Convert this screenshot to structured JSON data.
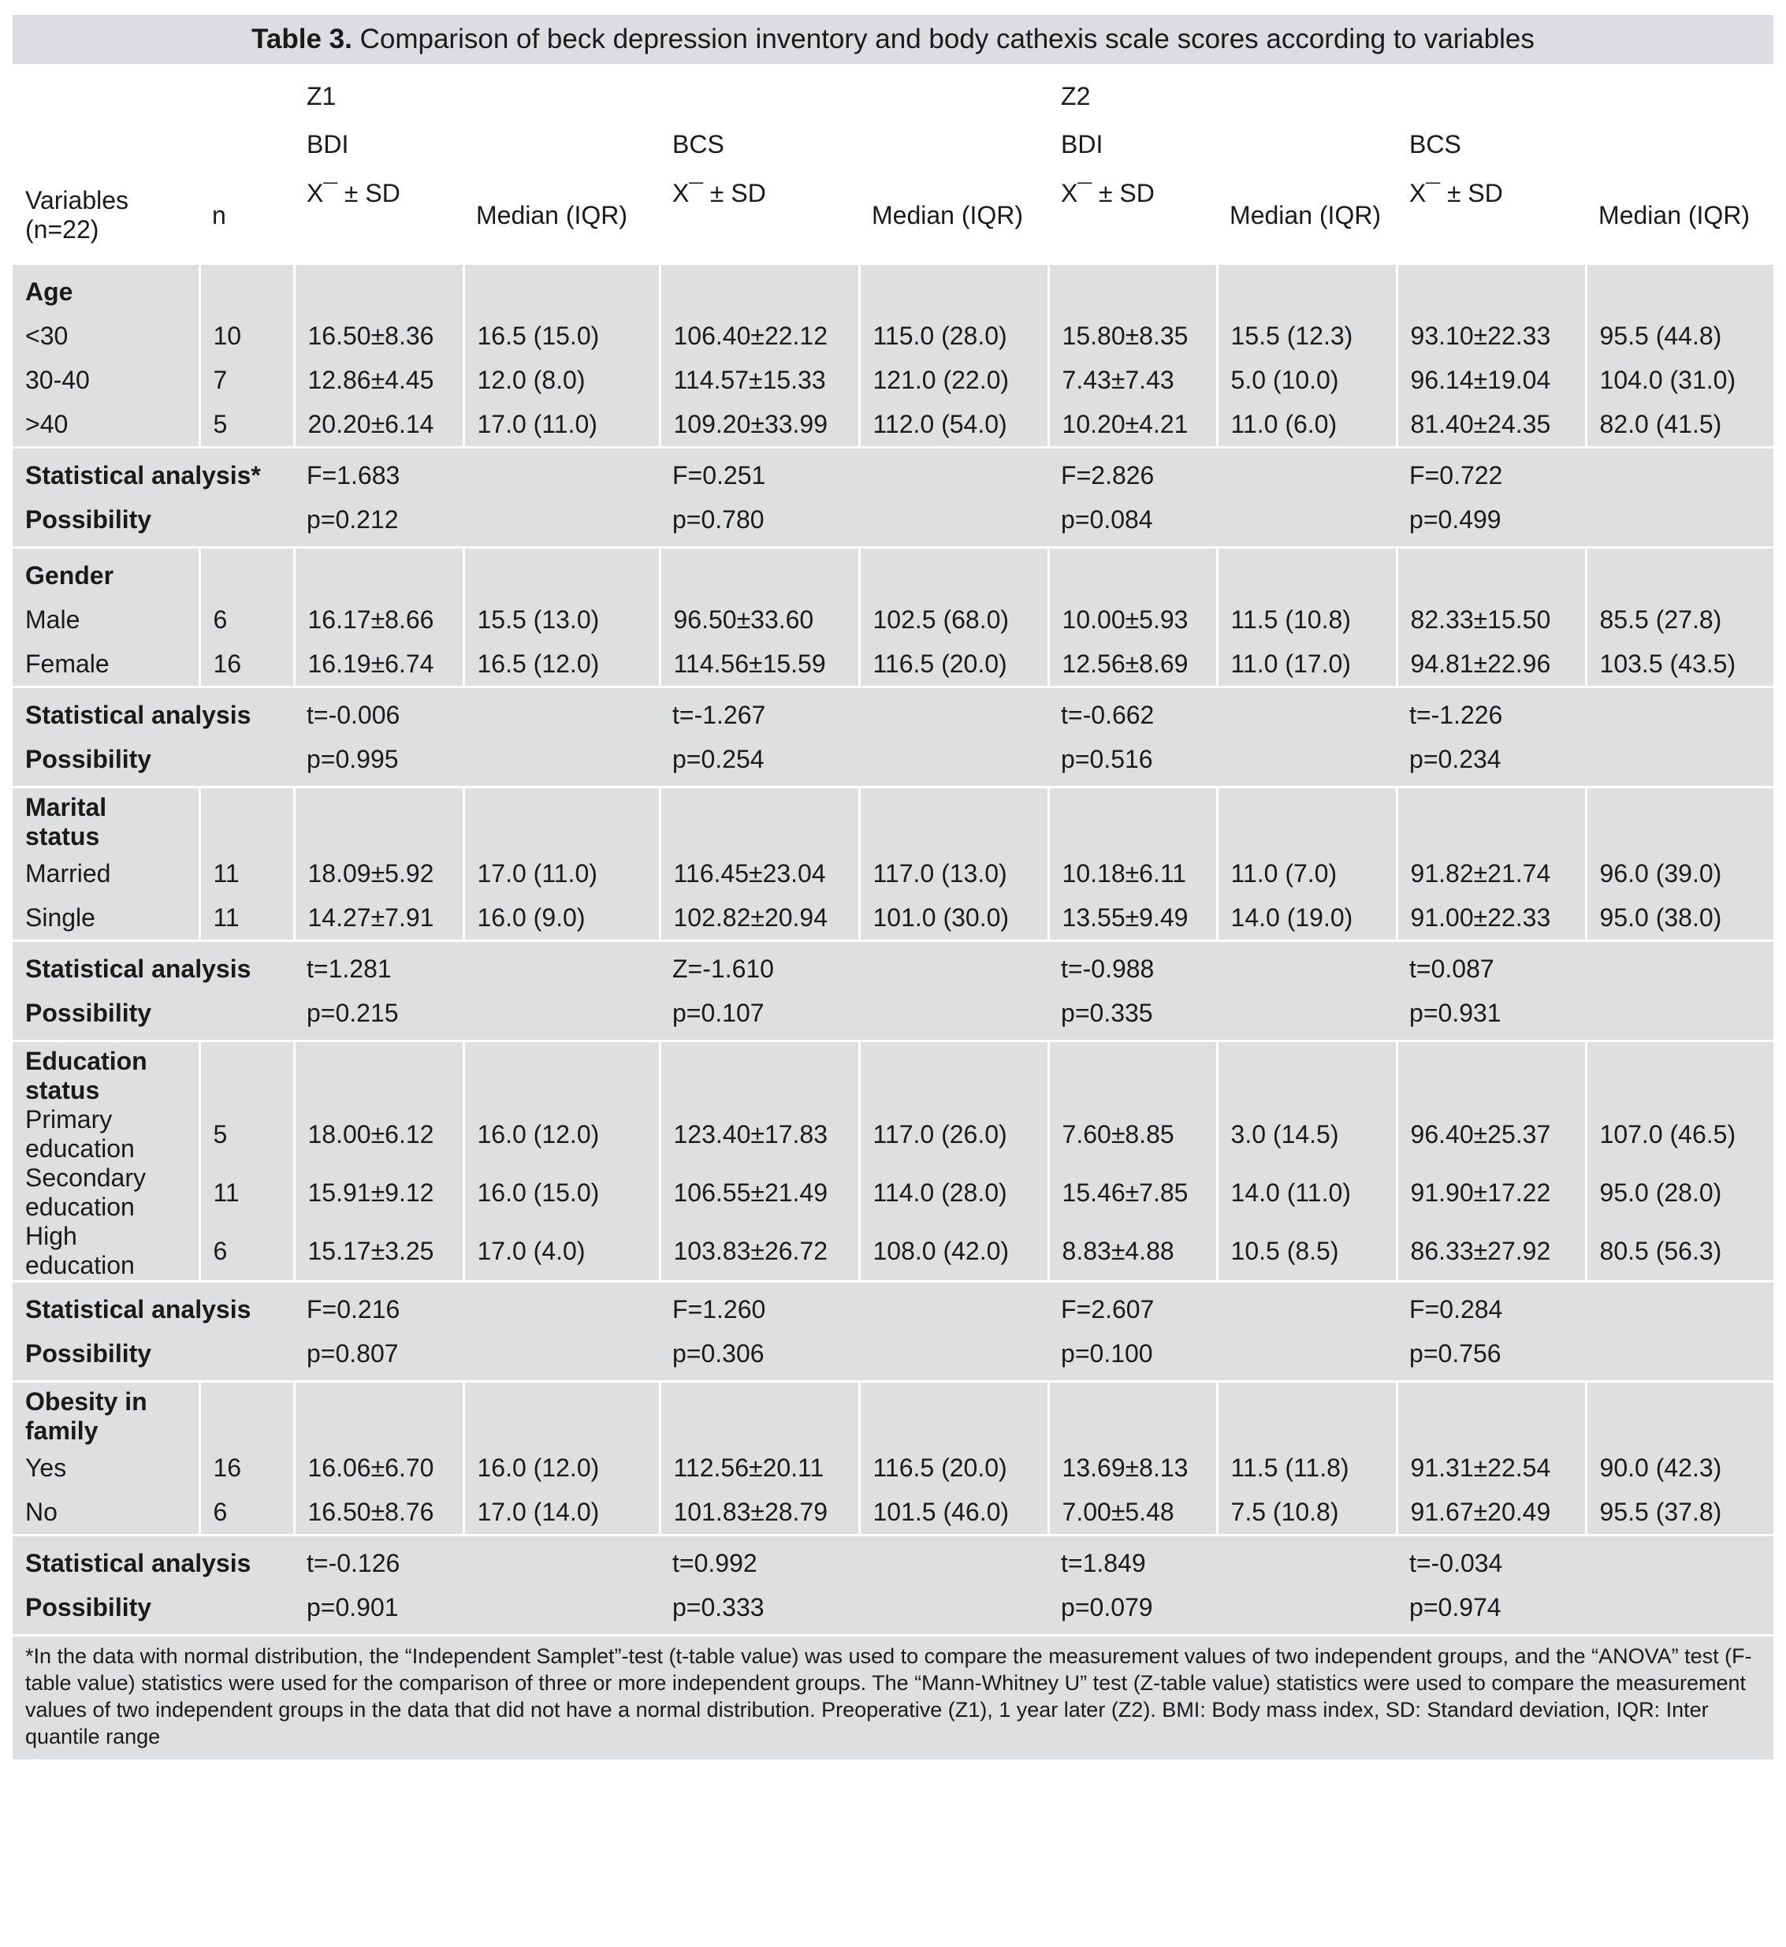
{
  "title_label": "Table 3.",
  "title": "Comparison of beck depression inventory and body cathexis scale scores according to variables",
  "header": {
    "time": [
      "Z1",
      "Z2"
    ],
    "scales": [
      "BDI",
      "BCS",
      "BDI",
      "BCS"
    ],
    "variables": "Variables (n=22)",
    "n": "n",
    "columns": [
      "X¯ ± SD",
      "Median (IQR)",
      "X¯ ± SD",
      "Median (IQR)",
      "X¯ ± SD",
      "Median (IQR)",
      "X¯ ± SD",
      "Median (IQR)"
    ]
  },
  "groups": [
    {
      "label": "Age",
      "rows": [
        {
          "label": "<30",
          "n": "10",
          "cells": [
            "16.50±8.36",
            "16.5 (15.0)",
            "106.40±22.12",
            "115.0 (28.0)",
            "15.80±8.35",
            "15.5 (12.3)",
            "93.10±22.33",
            "95.5 (44.8)"
          ]
        },
        {
          "label": "30-40",
          "n": "7",
          "cells": [
            "12.86±4.45",
            "12.0 (8.0)",
            "114.57±15.33",
            "121.0 (22.0)",
            "7.43±7.43",
            "5.0 (10.0)",
            "96.14±19.04",
            "104.0 (31.0)"
          ]
        },
        {
          "label": ">40",
          "n": "5",
          "cells": [
            "20.20±6.14",
            "17.0 (11.0)",
            "109.20±33.99",
            "112.0 (54.0)",
            "10.20±4.21",
            "11.0 (6.0)",
            "81.40±24.35",
            "82.0 (41.5)"
          ]
        }
      ],
      "stats": {
        "label": "Statistical analysis*",
        "values": [
          "F=1.683",
          "F=0.251",
          "F=2.826",
          "F=0.722"
        ]
      },
      "possibility": {
        "label": "Possibility",
        "values": [
          "p=0.212",
          "p=0.780",
          "p=0.084",
          "p=0.499"
        ]
      }
    },
    {
      "label": "Gender",
      "rows": [
        {
          "label": "Male",
          "n": "6",
          "cells": [
            "16.17±8.66",
            "15.5 (13.0)",
            "96.50±33.60",
            "102.5 (68.0)",
            "10.00±5.93",
            "11.5 (10.8)",
            "82.33±15.50",
            "85.5 (27.8)"
          ]
        },
        {
          "label": "Female",
          "n": "16",
          "cells": [
            "16.19±6.74",
            "16.5 (12.0)",
            "114.56±15.59",
            "116.5 (20.0)",
            "12.56±8.69",
            "11.0 (17.0)",
            "94.81±22.96",
            "103.5 (43.5)"
          ]
        }
      ],
      "stats": {
        "label": "Statistical analysis",
        "values": [
          "t=-0.006",
          "t=-1.267",
          "t=-0.662",
          "t=-1.226"
        ]
      },
      "possibility": {
        "label": "Possibility",
        "values": [
          "p=0.995",
          "p=0.254",
          "p=0.516",
          "p=0.234"
        ]
      }
    },
    {
      "label": "Marital status",
      "rows": [
        {
          "label": "Married",
          "n": "11",
          "cells": [
            "18.09±5.92",
            "17.0 (11.0)",
            "116.45±23.04",
            "117.0 (13.0)",
            "10.18±6.11",
            "11.0 (7.0)",
            "91.82±21.74",
            "96.0 (39.0)"
          ]
        },
        {
          "label": "Single",
          "n": "11",
          "cells": [
            "14.27±7.91",
            "16.0 (9.0)",
            "102.82±20.94",
            "101.0 (30.0)",
            "13.55±9.49",
            "14.0 (19.0)",
            "91.00±22.33",
            "95.0 (38.0)"
          ]
        }
      ],
      "stats": {
        "label": "Statistical analysis",
        "values": [
          "t=1.281",
          "Z=-1.610",
          "t=-0.988",
          "t=0.087"
        ]
      },
      "possibility": {
        "label": "Possibility",
        "values": [
          "p=0.215",
          "p=0.107",
          "p=0.335",
          "p=0.931"
        ]
      }
    },
    {
      "label": "Education status",
      "rows": [
        {
          "label": "Primary education",
          "n": "5",
          "cells": [
            "18.00±6.12",
            "16.0 (12.0)",
            "123.40±17.83",
            "117.0 (26.0)",
            "7.60±8.85",
            "3.0 (14.5)",
            "96.40±25.37",
            "107.0 (46.5)"
          ]
        },
        {
          "label": "Secondary education",
          "n": "11",
          "cells": [
            "15.91±9.12",
            "16.0 (15.0)",
            "106.55±21.49",
            "114.0 (28.0)",
            "15.46±7.85",
            "14.0 (11.0)",
            "91.90±17.22",
            "95.0 (28.0)"
          ]
        },
        {
          "label": "High education",
          "n": "6",
          "cells": [
            "15.17±3.25",
            "17.0 (4.0)",
            "103.83±26.72",
            "108.0 (42.0)",
            "8.83±4.88",
            "10.5 (8.5)",
            "86.33±27.92",
            "80.5 (56.3)"
          ]
        }
      ],
      "stats": {
        "label": "Statistical analysis",
        "values": [
          "F=0.216",
          "F=1.260",
          "F=2.607",
          "F=0.284"
        ]
      },
      "possibility": {
        "label": "Possibility",
        "values": [
          "p=0.807",
          "p=0.306",
          "p=0.100",
          "p=0.756"
        ]
      }
    },
    {
      "label": "Obesity in family",
      "rows": [
        {
          "label": "Yes",
          "n": "16",
          "cells": [
            "16.06±6.70",
            "16.0 (12.0)",
            "112.56±20.11",
            "116.5 (20.0)",
            "13.69±8.13",
            "11.5 (11.8)",
            "91.31±22.54",
            "90.0 (42.3)"
          ]
        },
        {
          "label": "No",
          "n": "6",
          "cells": [
            "16.50±8.76",
            "17.0 (14.0)",
            "101.83±28.79",
            "101.5 (46.0)",
            "7.00±5.48",
            "7.5 (10.8)",
            "91.67±20.49",
            "95.5 (37.8)"
          ]
        }
      ],
      "stats": {
        "label": "Statistical analysis",
        "values": [
          "t=-0.126",
          "t=0.992",
          "t=1.849",
          "t=-0.034"
        ]
      },
      "possibility": {
        "label": "Possibility",
        "values": [
          "p=0.901",
          "p=0.333",
          "p=0.079",
          "p=0.974"
        ]
      }
    }
  ],
  "footnote": "*In the data with normal distribution, the “Independent Samplet”-test (t-table value) was used to compare the measurement values of two independent groups, and the “ANOVA” test (F-table value) statistics were used for the comparison of three or more independent groups. The “Mann-Whitney U” test (Z-table value) statistics were used to compare the measurement values of two independent groups in the data that did not have a normal distribution. Preoperative (Z1), 1 year later (Z2). BMI: Body mass index, SD: Standard deviation, IQR: Inter quantile range"
}
